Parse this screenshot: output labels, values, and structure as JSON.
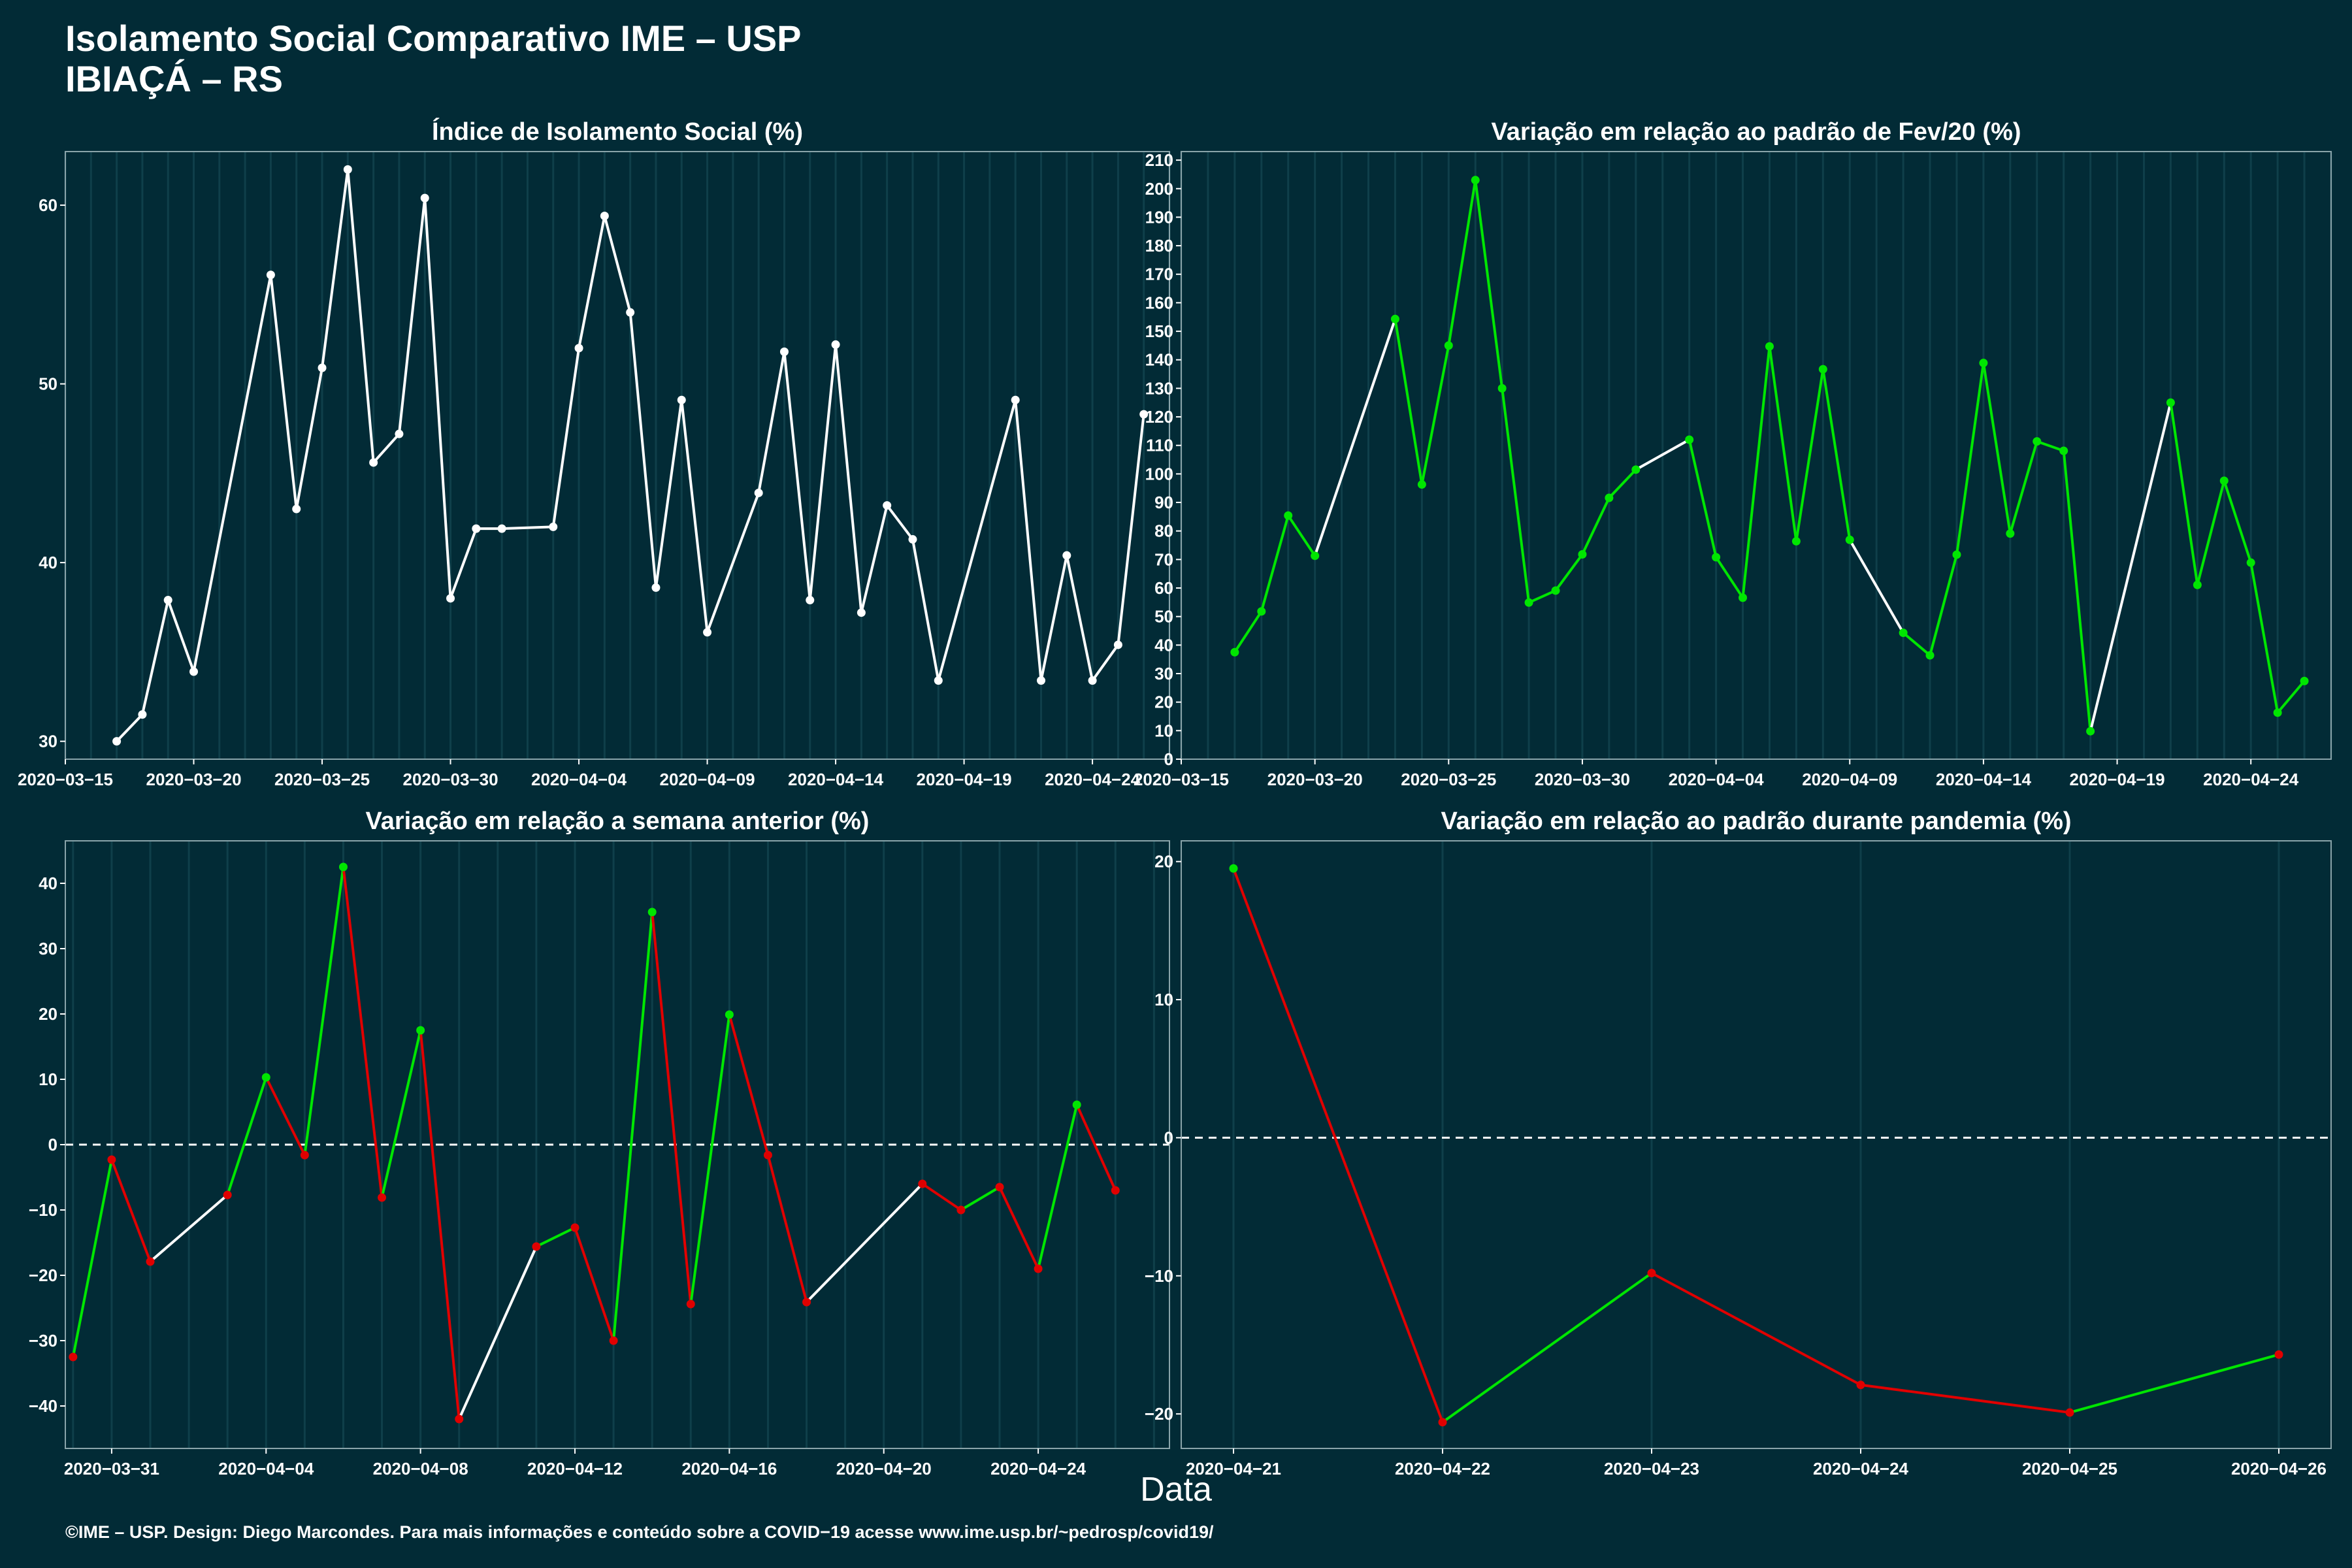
{
  "header": {
    "title_line1": "Isolamento Social Comparativo IME – USP",
    "title_line2": "IBIAÇÁ – RS"
  },
  "xlabel": "Data",
  "footer": "©IME – USP. Design: Diego Marcondes. Para mais informações e conteúdo sobre a COVID−19 acesse www.ime.usp.br/~pedrosp/covid19/",
  "colors": {
    "background": "#022b36",
    "white": "#ffffff",
    "green": "#00e600",
    "red": "#e00000",
    "grid": "#0f3f4a"
  },
  "chart_data": [
    {
      "type": "line",
      "title": "Índice de Isolamento Social (%)",
      "x_type": "date",
      "xlim": [
        "2020-03-15",
        "2020-04-27"
      ],
      "ylim": [
        29,
        63
      ],
      "x_ticks": [
        "2020-03-15",
        "2020-03-20",
        "2020-03-25",
        "2020-03-30",
        "2020-04-04",
        "2020-04-09",
        "2020-04-14",
        "2020-04-19",
        "2020-04-24"
      ],
      "y_ticks": [
        30,
        40,
        50,
        60
      ],
      "color_mode": "white",
      "points": [
        [
          "2020-03-17",
          30.0
        ],
        [
          "2020-03-18",
          31.5
        ],
        [
          "2020-03-19",
          37.9
        ],
        [
          "2020-03-20",
          33.9
        ],
        [
          "2020-03-23",
          56.1
        ],
        [
          "2020-03-24",
          43.0
        ],
        [
          "2020-03-25",
          50.9
        ],
        [
          "2020-03-26",
          62.0
        ],
        [
          "2020-03-27",
          45.6
        ],
        [
          "2020-03-28",
          47.2
        ],
        [
          "2020-03-29",
          60.4
        ],
        [
          "2020-03-30",
          38.0
        ],
        [
          "2020-03-31",
          41.9
        ],
        [
          "2020-04-01",
          41.9
        ],
        [
          "2020-04-03",
          42.0
        ],
        [
          "2020-04-04",
          52.0
        ],
        [
          "2020-04-05",
          59.4
        ],
        [
          "2020-04-06",
          54.0
        ],
        [
          "2020-04-07",
          38.6
        ],
        [
          "2020-04-08",
          49.1
        ],
        [
          "2020-04-09",
          36.1
        ],
        [
          "2020-04-11",
          43.9
        ],
        [
          "2020-04-12",
          51.8
        ],
        [
          "2020-04-13",
          37.9
        ],
        [
          "2020-04-14",
          52.2
        ],
        [
          "2020-04-15",
          37.2
        ],
        [
          "2020-04-16",
          43.2
        ],
        [
          "2020-04-17",
          41.3
        ],
        [
          "2020-04-18",
          33.4
        ],
        [
          "2020-04-21",
          49.1
        ],
        [
          "2020-04-22",
          33.4
        ],
        [
          "2020-04-23",
          40.4
        ],
        [
          "2020-04-24",
          33.4
        ],
        [
          "2020-04-25",
          35.4
        ],
        [
          "2020-04-26",
          48.3
        ]
      ]
    },
    {
      "type": "line",
      "title": "Variação em relação ao padrão de Fev/20 (%)",
      "x_type": "date",
      "xlim": [
        "2020-03-15",
        "2020-04-27"
      ],
      "ylim": [
        0,
        213
      ],
      "x_ticks": [
        "2020-03-15",
        "2020-03-20",
        "2020-03-25",
        "2020-03-30",
        "2020-04-04",
        "2020-04-09",
        "2020-04-14",
        "2020-04-19",
        "2020-04-24"
      ],
      "y_ticks": [
        0,
        10,
        20,
        30,
        40,
        50,
        60,
        70,
        80,
        90,
        100,
        110,
        120,
        130,
        140,
        150,
        160,
        170,
        180,
        190,
        200,
        210
      ],
      "color_mode": "green_daily",
      "points": [
        [
          "2020-03-17",
          37.5
        ],
        [
          "2020-03-18",
          51.8
        ],
        [
          "2020-03-19",
          85.4
        ],
        [
          "2020-03-20",
          71.3
        ],
        [
          "2020-03-23",
          154.3
        ],
        [
          "2020-03-24",
          96.3
        ],
        [
          "2020-03-25",
          145.0
        ],
        [
          "2020-03-26",
          203.0
        ],
        [
          "2020-03-27",
          130.0
        ],
        [
          "2020-03-28",
          54.9
        ],
        [
          "2020-03-29",
          59.1
        ],
        [
          "2020-03-30",
          71.8
        ],
        [
          "2020-03-31",
          91.6
        ],
        [
          "2020-04-01",
          101.5
        ],
        [
          "2020-04-03",
          112.0
        ],
        [
          "2020-04-04",
          70.8
        ],
        [
          "2020-04-05",
          56.6
        ],
        [
          "2020-04-06",
          144.7
        ],
        [
          "2020-04-07",
          76.4
        ],
        [
          "2020-04-08",
          136.7
        ],
        [
          "2020-04-09",
          76.9
        ],
        [
          "2020-04-11",
          44.3
        ],
        [
          "2020-04-12",
          36.4
        ],
        [
          "2020-04-13",
          71.7
        ],
        [
          "2020-04-14",
          138.9
        ],
        [
          "2020-04-15",
          79.1
        ],
        [
          "2020-04-16",
          111.4
        ],
        [
          "2020-04-17",
          108.1
        ],
        [
          "2020-04-18",
          9.8
        ],
        [
          "2020-04-21",
          125.0
        ],
        [
          "2020-04-22",
          61.1
        ],
        [
          "2020-04-23",
          97.6
        ],
        [
          "2020-04-24",
          68.9
        ],
        [
          "2020-04-25",
          16.3
        ],
        [
          "2020-04-26",
          27.4
        ]
      ]
    },
    {
      "type": "line",
      "title": "Variação em relação a semana anterior (%)",
      "x_type": "date",
      "xlim": [
        "2020-03-29.8",
        "2020-04-27.4"
      ],
      "ylim": [
        -46.5,
        46.5
      ],
      "x_ticks": [
        "2020-03-31",
        "2020-04-04",
        "2020-04-08",
        "2020-04-12",
        "2020-04-16",
        "2020-04-20",
        "2020-04-24"
      ],
      "y_ticks": [
        -40,
        -30,
        -20,
        -10,
        0,
        10,
        20,
        30,
        40
      ],
      "zero_line": true,
      "color_mode": "sign_daily",
      "points": [
        [
          "2020-03-30",
          -32.5
        ],
        [
          "2020-03-31",
          -2.3
        ],
        [
          "2020-04-01",
          -17.9
        ],
        [
          "2020-04-03",
          -7.7
        ],
        [
          "2020-04-04",
          10.3
        ],
        [
          "2020-04-05",
          -1.6
        ],
        [
          "2020-04-06",
          42.5
        ],
        [
          "2020-04-07",
          -8.1
        ],
        [
          "2020-04-08",
          17.5
        ],
        [
          "2020-04-09",
          -42.0
        ],
        [
          "2020-04-11",
          -15.6
        ],
        [
          "2020-04-12",
          -12.7
        ],
        [
          "2020-04-13",
          -30.0
        ],
        [
          "2020-04-14",
          35.6
        ],
        [
          "2020-04-15",
          -24.4
        ],
        [
          "2020-04-16",
          19.9
        ],
        [
          "2020-04-17",
          -1.6
        ],
        [
          "2020-04-18",
          -24.1
        ],
        [
          "2020-04-21",
          -6.0
        ],
        [
          "2020-04-22",
          -10.0
        ],
        [
          "2020-04-23",
          -6.5
        ],
        [
          "2020-04-24",
          -19.0
        ],
        [
          "2020-04-25",
          6.1
        ],
        [
          "2020-04-26",
          -7.0
        ]
      ]
    },
    {
      "type": "line",
      "title": "Variação em relação ao padrão durante pandemia (%)",
      "x_type": "date",
      "xlim": [
        "2020-04-20.75",
        "2020-04-26.25"
      ],
      "ylim": [
        -22.5,
        21.5
      ],
      "x_ticks": [
        "2020-04-21",
        "2020-04-22",
        "2020-04-23",
        "2020-04-24",
        "2020-04-25",
        "2020-04-26"
      ],
      "y_ticks": [
        -20,
        -10,
        0,
        10,
        20
      ],
      "zero_line": true,
      "color_mode": "sign_daily",
      "points": [
        [
          "2020-04-21",
          19.5
        ],
        [
          "2020-04-22",
          -20.6
        ],
        [
          "2020-04-23",
          -9.8
        ],
        [
          "2020-04-24",
          -17.9
        ],
        [
          "2020-04-25",
          -19.9
        ],
        [
          "2020-04-26",
          -15.7
        ]
      ]
    }
  ]
}
